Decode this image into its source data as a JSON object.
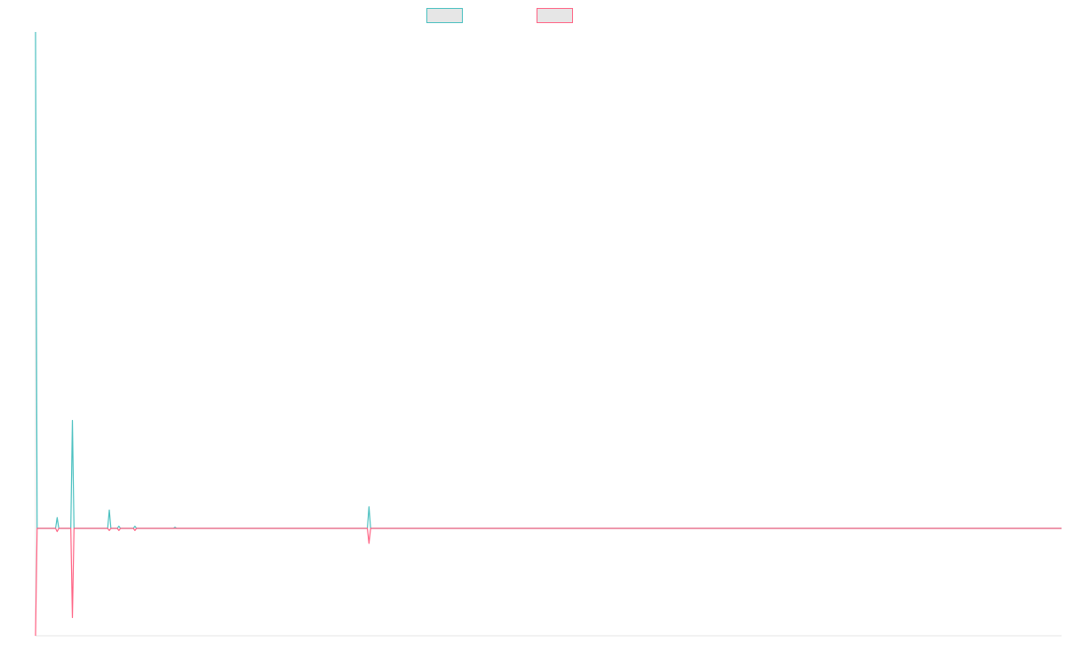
{
  "chart_data": {
    "type": "line",
    "title": "",
    "xlabel": "",
    "ylabel": "",
    "grid": false,
    "legend_position": "top-center",
    "y_range": [
      -1,
      4.6
    ],
    "x_range": [
      0,
      128
    ],
    "series": [
      {
        "color": "#4bc0c0",
        "fill": "#e6e6e6",
        "points": [
          [
            0,
            4.6
          ],
          [
            0.2,
            0
          ],
          [
            2.5,
            0
          ],
          [
            2.7,
            0.1
          ],
          [
            2.9,
            0
          ],
          [
            4.4,
            0
          ],
          [
            4.6,
            1.0
          ],
          [
            4.8,
            0
          ],
          [
            9.0,
            0
          ],
          [
            9.2,
            0.17
          ],
          [
            9.4,
            0
          ],
          [
            10.2,
            0
          ],
          [
            10.4,
            0.02
          ],
          [
            10.6,
            0
          ],
          [
            12.2,
            0
          ],
          [
            12.4,
            0.02
          ],
          [
            12.6,
            0
          ],
          [
            17.2,
            0
          ],
          [
            17.4,
            0.01
          ],
          [
            17.6,
            0
          ],
          [
            41.4,
            0
          ],
          [
            41.6,
            0.2
          ],
          [
            41.8,
            0
          ],
          [
            128,
            0
          ]
        ]
      },
      {
        "color": "#ff6384",
        "fill": "#e6e6e6",
        "points": [
          [
            0,
            -1.0
          ],
          [
            0.2,
            0
          ],
          [
            2.5,
            0
          ],
          [
            2.7,
            -0.03
          ],
          [
            2.9,
            0
          ],
          [
            4.4,
            0
          ],
          [
            4.6,
            -0.83
          ],
          [
            4.8,
            0
          ],
          [
            9.0,
            0
          ],
          [
            9.2,
            -0.02
          ],
          [
            9.4,
            0
          ],
          [
            10.2,
            0
          ],
          [
            10.4,
            -0.02
          ],
          [
            10.6,
            0
          ],
          [
            12.2,
            0
          ],
          [
            12.4,
            -0.02
          ],
          [
            12.6,
            0
          ],
          [
            41.4,
            0
          ],
          [
            41.6,
            -0.14
          ],
          [
            41.8,
            0
          ],
          [
            128,
            0
          ]
        ]
      }
    ]
  }
}
